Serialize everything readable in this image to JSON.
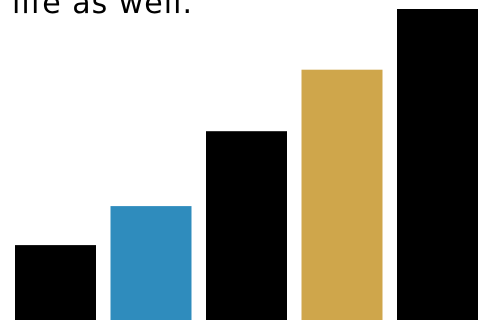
{
  "caption": "life as well.",
  "chart_data": {
    "type": "bar",
    "title": "",
    "xlabel": "",
    "ylabel": "",
    "categories": [
      "",
      "",
      "",
      "",
      ""
    ],
    "values": [
      1.0,
      1.52,
      2.52,
      3.34,
      4.15
    ],
    "ylim": [
      0,
      4.15
    ],
    "colors": [
      "#000000",
      "#2f8cbd",
      "#000000",
      "#cfa64b",
      "#000000"
    ],
    "grid": false,
    "legend": "none"
  }
}
